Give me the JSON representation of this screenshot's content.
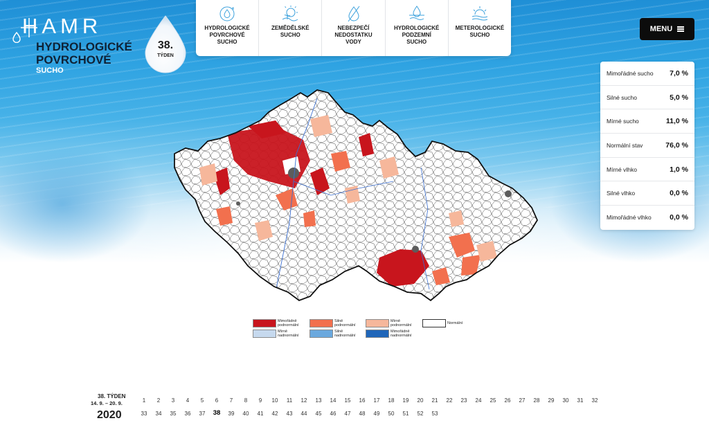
{
  "brand": {
    "name": "HAMR"
  },
  "page": {
    "title_line1": "HYDROLOGICKÉ",
    "title_line2": "POVRCHOVÉ",
    "subtitle": "SUCHO"
  },
  "week_badge": {
    "number": "38.",
    "label": "TÝDEN"
  },
  "nav": [
    {
      "label_lines": [
        "HYDROLOGICKÉ",
        "POVRCHOVÉ",
        "SUCHO"
      ],
      "icon": "water-cycle-icon"
    },
    {
      "label_lines": [
        "ZEMĚDĚLSKÉ",
        "SUCHO"
      ],
      "icon": "sun-plant-icon"
    },
    {
      "label_lines": [
        "NEBEZPEČÍ",
        "NEDOSTATKU",
        "VODY"
      ],
      "icon": "crossed-drop-icon"
    },
    {
      "label_lines": [
        "HYDROLOGICKÉ",
        "PODZEMNÍ",
        "SUCHO"
      ],
      "icon": "ground-water-icon"
    },
    {
      "label_lines": [
        "METEROLOGICKÉ",
        "SUCHO"
      ],
      "icon": "sun-waves-icon"
    }
  ],
  "menu": {
    "label": "MENU"
  },
  "stats": [
    {
      "label": "Mimořádné sucho",
      "value": "7,0 %"
    },
    {
      "label": "Silné sucho",
      "value": "5,0 %"
    },
    {
      "label": "Mírné sucho",
      "value": "11,0 %"
    },
    {
      "label": "Normální stav",
      "value": "76,0 %"
    },
    {
      "label": "Mírné vlhko",
      "value": "1,0 %"
    },
    {
      "label": "Silné vlhko",
      "value": "0,0 %"
    },
    {
      "label": "Mimořádné vlhko",
      "value": "0,0 %"
    }
  ],
  "legend": [
    {
      "lines": [
        "Mimořádně",
        "podnormální"
      ],
      "color": "#c8151d"
    },
    {
      "lines": [
        "Silně",
        "podnormální"
      ],
      "color": "#f2704e"
    },
    {
      "lines": [
        "Mírně",
        "podnormální"
      ],
      "color": "#f6b79b"
    },
    {
      "lines": [
        "Normální"
      ],
      "color": "#ffffff"
    },
    {
      "lines": [
        "Mírně",
        "nadnormální"
      ],
      "color": "#c6d9ee"
    },
    {
      "lines": [
        "Silně",
        "nadnormální"
      ],
      "color": "#6aa8de"
    },
    {
      "lines": [
        "Mimořádně",
        "nadnormální"
      ],
      "color": "#1f66b9"
    }
  ],
  "colors": {
    "extreme_dry": "#c8151d",
    "severe_dry": "#f2704e",
    "mild_dry": "#f6b79b",
    "normal": "#ffffff",
    "river": "#3b6fd1",
    "border": "#111111"
  },
  "timeline": {
    "week_label": "38. TÝDEN",
    "date_range": "14. 9. – 20. 9.",
    "year": "2020",
    "current_week": "38",
    "row1": [
      "1",
      "2",
      "3",
      "4",
      "5",
      "6",
      "7",
      "8",
      "9",
      "10",
      "11",
      "12",
      "13",
      "14",
      "15",
      "16",
      "17",
      "18",
      "19",
      "20",
      "21",
      "22",
      "23",
      "24",
      "25",
      "26",
      "27",
      "28",
      "29",
      "30",
      "31",
      "32"
    ],
    "row2": [
      "33",
      "34",
      "35",
      "36",
      "37",
      "38",
      "39",
      "40",
      "41",
      "42",
      "43",
      "44",
      "45",
      "46",
      "47",
      "48",
      "49",
      "50",
      "51",
      "52",
      "53"
    ]
  }
}
